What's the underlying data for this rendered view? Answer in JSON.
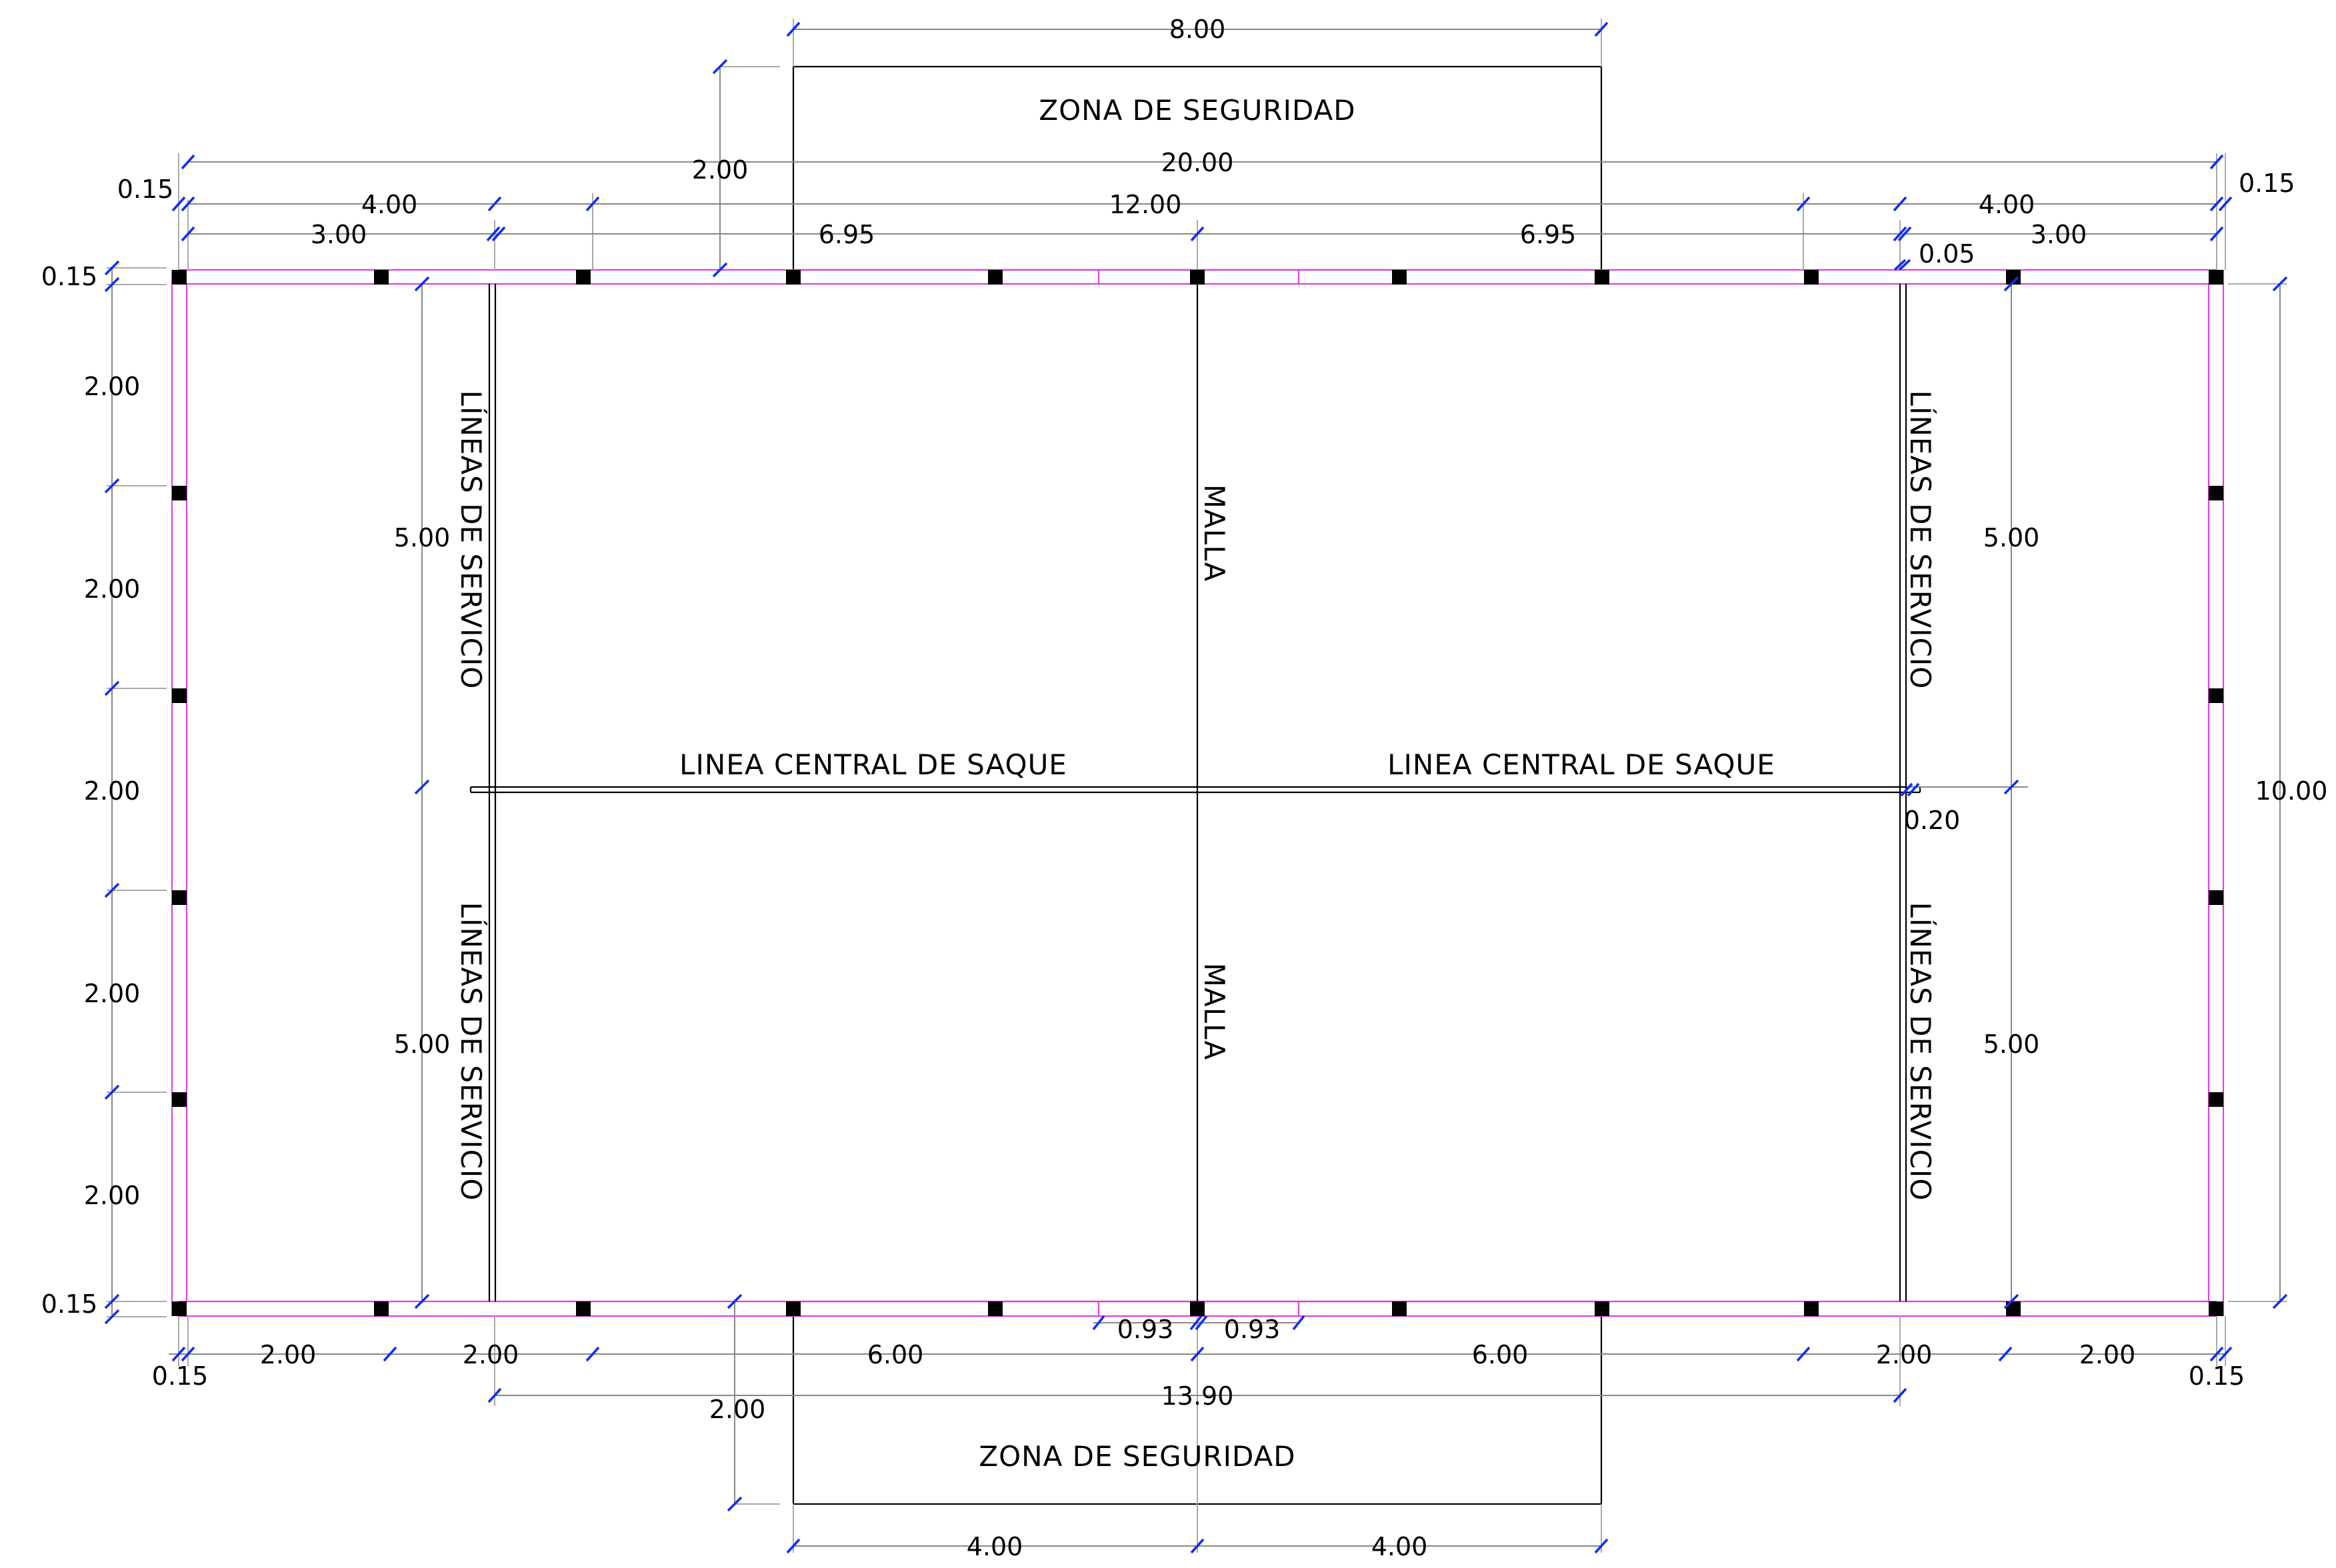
{
  "colors": {
    "lines": "#000000",
    "magenta_walls": "#e040e0",
    "dimension_ticks": "#1030f0",
    "extension_lines": "#aaaaaa"
  },
  "labels": {
    "zona_top": "ZONA DE SEGURIDAD",
    "zona_bottom": "ZONA DE SEGURIDAD",
    "linea_left": "LINEA CENTRAL DE SAQUE",
    "linea_right": "LINEA CENTRAL DE SAQUE",
    "malla_top": "MALLA",
    "malla_bottom": "MALLA",
    "servicio_tl": "LÍNEAS DE SERVICIO",
    "servicio_bl": "LÍNEAS DE SERVICIO",
    "servicio_tr": "LÍNEAS DE SERVICIO",
    "servicio_br": "LÍNEAS DE SERVICIO"
  },
  "dims": {
    "top_8": "8.00",
    "top_zone_2": "2.00",
    "top_20": "20.00",
    "top_015_l": "0.15",
    "top_015_r": "0.15",
    "top_4_l": "4.00",
    "top_12": "12.00",
    "top_4_r": "4.00",
    "top_3_l": "3.00",
    "top_695_l": "6.95",
    "top_695_r": "6.95",
    "top_3_r": "3.00",
    "top_005": "0.05",
    "left_015_t": "0.15",
    "left_2_a": "2.00",
    "left_2_b": "2.00",
    "left_2_c": "2.00",
    "left_2_d": "2.00",
    "left_2_e": "2.00",
    "left_015_b": "0.15",
    "inner_5_tl": "5.00",
    "inner_5_bl": "5.00",
    "inner_5_tr": "5.00",
    "inner_5_br": "5.00",
    "right_10": "10.00",
    "mid_020": "0.20",
    "bot_093_l": "0.93",
    "bot_093_r": "0.93",
    "bot_015_l": "0.15",
    "bot_2_a": "2.00",
    "bot_2_b": "2.00",
    "bot_6_l": "6.00",
    "bot_6_r": "6.00",
    "bot_2_c": "2.00",
    "bot_2_d": "2.00",
    "bot_015_r": "0.15",
    "bot_1390": "13.90",
    "bot_zone_2": "2.00",
    "bot_4_l": "4.00",
    "bot_4_r": "4.00"
  }
}
